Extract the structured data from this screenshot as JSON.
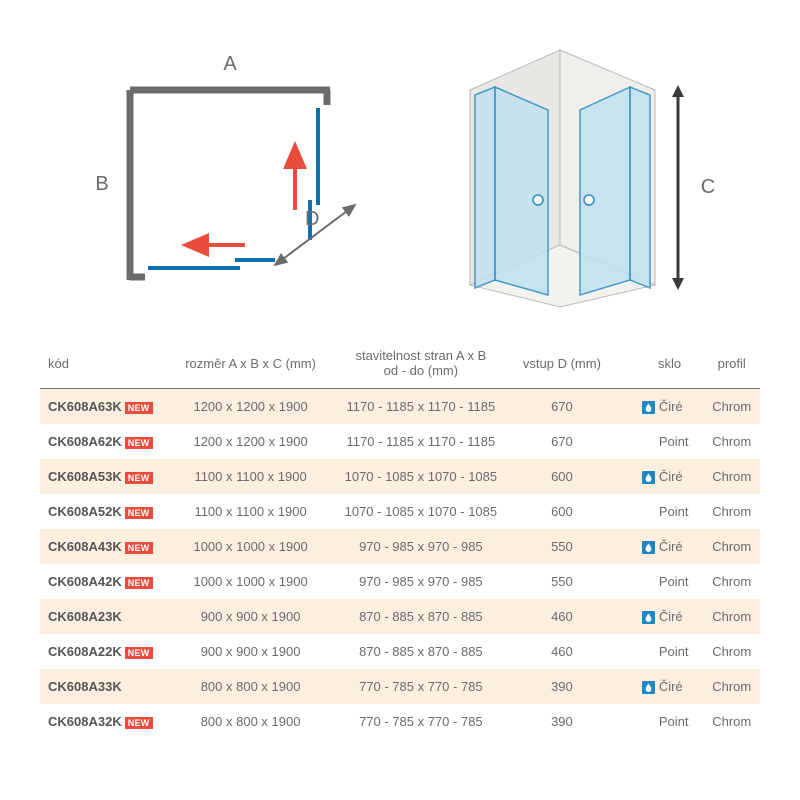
{
  "diagram": {
    "labels": {
      "A": "A",
      "B": "B",
      "C": "C",
      "D": "D"
    },
    "label_color": "#6b6b6b",
    "label_fontsize": 20,
    "frame_color": "#6b6b6b",
    "panel_color": "#0f6fa8",
    "arrow_color": "#e74c3c",
    "glass_fill": "#bfe2f0",
    "glass_stroke": "#2b8bc0",
    "wall_fill": "#e8e7e3",
    "wall_stroke": "#b9b8b3"
  },
  "table": {
    "headers": {
      "kod": "kód",
      "rozmer": "rozměr A x B x C (mm)",
      "stavitelnost": "stavitelnost stran A x B\nod - do (mm)",
      "vstup": "vstup D (mm)",
      "sklo": "sklo",
      "profil": "profil"
    },
    "new_label": "NEW",
    "rows": [
      {
        "kod": "CK608A63K",
        "new": true,
        "rozmer": "1200 x 1200 x 1900",
        "stav": "1170 - 1185 x 1170 - 1185",
        "vstup": "670",
        "drop": true,
        "sklo": "Čiré",
        "profil": "Chrom",
        "alt": true
      },
      {
        "kod": "CK608A62K",
        "new": true,
        "rozmer": "1200 x 1200 x 1900",
        "stav": "1170 - 1185 x 1170 - 1185",
        "vstup": "670",
        "drop": false,
        "sklo": "Point",
        "profil": "Chrom",
        "alt": false
      },
      {
        "kod": "CK608A53K",
        "new": true,
        "rozmer": "1100 x 1100 x 1900",
        "stav": "1070 - 1085 x 1070 - 1085",
        "vstup": "600",
        "drop": true,
        "sklo": "Čiré",
        "profil": "Chrom",
        "alt": true
      },
      {
        "kod": "CK608A52K",
        "new": true,
        "rozmer": "1100 x 1100 x 1900",
        "stav": "1070 - 1085 x 1070 - 1085",
        "vstup": "600",
        "drop": false,
        "sklo": "Point",
        "profil": "Chrom",
        "alt": false
      },
      {
        "kod": "CK608A43K",
        "new": true,
        "rozmer": "1000 x 1000 x 1900",
        "stav": "970 - 985 x 970 - 985",
        "vstup": "550",
        "drop": true,
        "sklo": "Čiré",
        "profil": "Chrom",
        "alt": true
      },
      {
        "kod": "CK608A42K",
        "new": true,
        "rozmer": "1000 x 1000 x 1900",
        "stav": "970 - 985 x 970 - 985",
        "vstup": "550",
        "drop": false,
        "sklo": "Point",
        "profil": "Chrom",
        "alt": false
      },
      {
        "kod": "CK608A23K",
        "new": false,
        "rozmer": "900 x 900 x 1900",
        "stav": "870 - 885 x 870 - 885",
        "vstup": "460",
        "drop": true,
        "sklo": "Čiré",
        "profil": "Chrom",
        "alt": true
      },
      {
        "kod": "CK608A22K",
        "new": true,
        "rozmer": "900 x 900 x 1900",
        "stav": "870 - 885 x 870 - 885",
        "vstup": "460",
        "drop": false,
        "sklo": "Point",
        "profil": "Chrom",
        "alt": false
      },
      {
        "kod": "CK608A33K",
        "new": false,
        "rozmer": "800 x 800 x 1900",
        "stav": "770 - 785 x 770 - 785",
        "vstup": "390",
        "drop": true,
        "sklo": "Čiré",
        "profil": "Chrom",
        "alt": true
      },
      {
        "kod": "CK608A32K",
        "new": true,
        "rozmer": "800 x 800 x 1900",
        "stav": "770 - 785 x 770 - 785",
        "vstup": "390",
        "drop": false,
        "sklo": "Point",
        "profil": "Chrom",
        "alt": false
      }
    ]
  },
  "colors": {
    "text": "#6b6b6b",
    "row_alt_bg": "#fcefe0",
    "badge_bg": "#e74c3c",
    "drop_icon_bg": "#1e88c7"
  }
}
